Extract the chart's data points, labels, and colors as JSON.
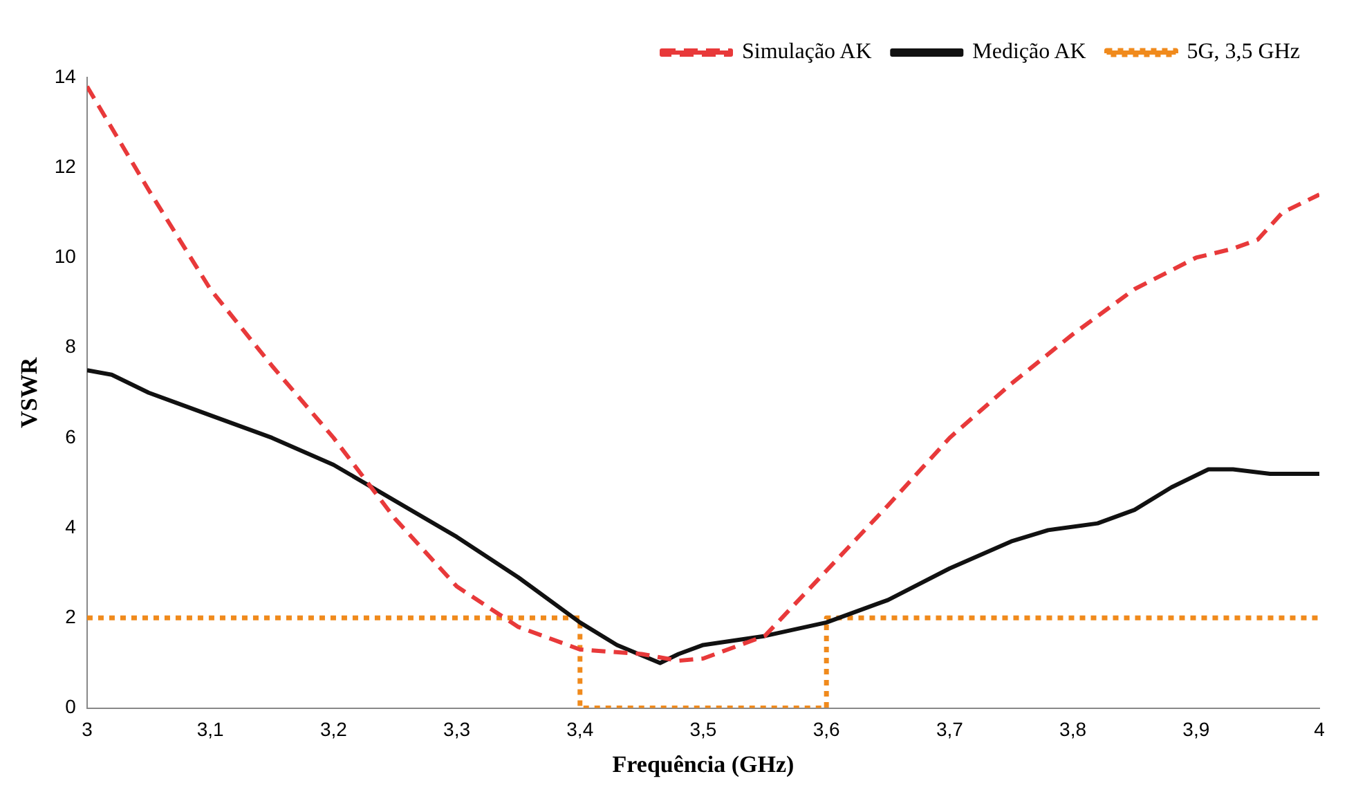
{
  "chart_data": {
    "type": "line",
    "xlabel": "Frequência (GHz)",
    "ylabel": "VSWR",
    "xlim": [
      3,
      4
    ],
    "xticks": [
      3,
      {
        "value": 3.1,
        "label": "3,1"
      },
      {
        "value": 3.2,
        "label": "3,2"
      },
      {
        "value": 3.3,
        "label": "3,3"
      },
      {
        "value": 3.4,
        "label": "3,4"
      },
      {
        "value": 3.5,
        "label": "3,5"
      },
      {
        "value": 3.6,
        "label": "3,6"
      },
      {
        "value": 3.7,
        "label": "3,7"
      },
      {
        "value": 3.8,
        "label": "3,8"
      },
      {
        "value": 3.9,
        "label": "3,9"
      },
      4
    ],
    "ylim": [
      0,
      14
    ],
    "yticks": [
      0,
      2,
      4,
      6,
      8,
      10,
      12,
      14
    ],
    "grid": false,
    "legend": "top right",
    "marker": "none",
    "series": [
      {
        "name": "Simulação AK",
        "color": "#e8393a",
        "line_style": "dashed",
        "x": [
          3,
          3.05,
          3.1,
          3.15,
          3.2,
          3.25,
          3.3,
          3.35,
          3.4,
          3.45,
          3.48,
          3.5,
          3.55,
          3.6,
          3.65,
          3.7,
          3.75,
          3.8,
          3.85,
          3.9,
          3.93,
          3.95,
          3.97,
          4
        ],
        "values": [
          13.8,
          11.5,
          9.3,
          7.6,
          6.0,
          4.2,
          2.7,
          1.8,
          1.3,
          1.2,
          1.05,
          1.1,
          1.6,
          3.05,
          4.5,
          6.0,
          7.2,
          8.3,
          9.3,
          10.0,
          10.2,
          10.4,
          11.0,
          11.4
        ]
      },
      {
        "name": "Medição AK",
        "color": "#111111",
        "line_style": "solid",
        "x": [
          3,
          3.02,
          3.05,
          3.1,
          3.15,
          3.2,
          3.25,
          3.3,
          3.35,
          3.4,
          3.43,
          3.465,
          3.48,
          3.5,
          3.55,
          3.6,
          3.65,
          3.7,
          3.75,
          3.78,
          3.82,
          3.85,
          3.88,
          3.91,
          3.93,
          3.96,
          4
        ],
        "values": [
          7.5,
          7.4,
          7.0,
          6.5,
          6.0,
          5.4,
          4.6,
          3.8,
          2.9,
          1.9,
          1.4,
          1.0,
          1.2,
          1.4,
          1.6,
          1.9,
          2.4,
          3.1,
          3.7,
          3.95,
          4.1,
          4.4,
          4.9,
          5.3,
          5.3,
          5.2,
          5.2
        ]
      },
      {
        "name": "5G, 3,5 GHz",
        "color": "#f08a1c",
        "line_style": "dotted",
        "x": [
          3,
          3.4,
          3.4,
          3.6,
          3.6,
          4
        ],
        "values": [
          2,
          2,
          0,
          0,
          2,
          2
        ]
      }
    ]
  }
}
